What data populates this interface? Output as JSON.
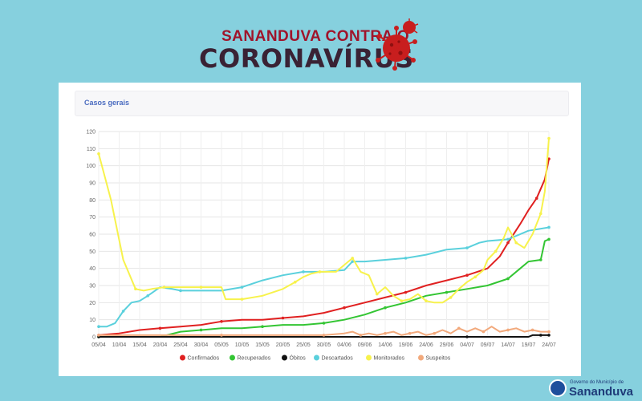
{
  "header": {
    "line1": "SANANDUVA CONTRA O",
    "line2": "CORONAVÍRUS"
  },
  "card": {
    "title": "Casos gerais"
  },
  "footer": {
    "small": "Governo do Município de",
    "big": "Sananduva"
  },
  "colors": {
    "background": "#86d0de",
    "confirmados": "#e02020",
    "recuperados": "#33c533",
    "obitos": "#111111",
    "descartados": "#5ad0dc",
    "monitorados": "#f7f24c",
    "suspeitos": "#f2a97c"
  },
  "chart_data": {
    "type": "line",
    "ylim": [
      0,
      120
    ],
    "yticks": [
      0,
      10,
      20,
      30,
      40,
      50,
      60,
      70,
      80,
      90,
      100,
      110,
      120
    ],
    "xlim": [
      0,
      110
    ],
    "xticks": [
      "05/04",
      "10/04",
      "15/04",
      "20/04",
      "25/04",
      "30/04",
      "05/05",
      "10/05",
      "15/05",
      "20/05",
      "25/05",
      "30/05",
      "04/06",
      "09/06",
      "14/06",
      "19/06",
      "24/06",
      "29/06",
      "04/07",
      "09/07",
      "14/07",
      "19/07",
      "24/07"
    ],
    "series": [
      {
        "name": "Confirmados",
        "color": "#e02020",
        "points": [
          [
            0,
            1
          ],
          [
            5,
            2
          ],
          [
            10,
            4
          ],
          [
            15,
            5
          ],
          [
            20,
            6
          ],
          [
            25,
            7
          ],
          [
            30,
            9
          ],
          [
            35,
            10
          ],
          [
            40,
            10
          ],
          [
            45,
            11
          ],
          [
            50,
            12
          ],
          [
            55,
            14
          ],
          [
            60,
            17
          ],
          [
            65,
            20
          ],
          [
            70,
            23
          ],
          [
            75,
            26
          ],
          [
            80,
            30
          ],
          [
            85,
            33
          ],
          [
            90,
            36
          ],
          [
            95,
            40
          ],
          [
            98,
            47
          ],
          [
            100,
            55
          ],
          [
            103,
            66
          ],
          [
            105,
            74
          ],
          [
            107,
            81
          ],
          [
            109,
            92
          ],
          [
            110,
            104
          ]
        ]
      },
      {
        "name": "Recuperados",
        "color": "#33c533",
        "points": [
          [
            0,
            0
          ],
          [
            15,
            0
          ],
          [
            20,
            3
          ],
          [
            25,
            4
          ],
          [
            30,
            5
          ],
          [
            35,
            5
          ],
          [
            40,
            6
          ],
          [
            45,
            7
          ],
          [
            50,
            7
          ],
          [
            55,
            8
          ],
          [
            60,
            10
          ],
          [
            65,
            13
          ],
          [
            70,
            17
          ],
          [
            75,
            20
          ],
          [
            80,
            24
          ],
          [
            85,
            26
          ],
          [
            90,
            28
          ],
          [
            95,
            30
          ],
          [
            100,
            34
          ],
          [
            103,
            40
          ],
          [
            105,
            44
          ],
          [
            108,
            45
          ],
          [
            109,
            56
          ],
          [
            110,
            57
          ]
        ]
      },
      {
        "name": "Óbitos",
        "color": "#111111",
        "points": [
          [
            0,
            0
          ],
          [
            30,
            0
          ],
          [
            60,
            0
          ],
          [
            90,
            0
          ],
          [
            105,
            0
          ],
          [
            106,
            1
          ],
          [
            108,
            1
          ],
          [
            110,
            1
          ]
        ]
      },
      {
        "name": "Descartados",
        "color": "#5ad0dc",
        "points": [
          [
            0,
            6
          ],
          [
            2,
            6
          ],
          [
            4,
            8
          ],
          [
            6,
            15
          ],
          [
            8,
            20
          ],
          [
            10,
            21
          ],
          [
            12,
            24
          ],
          [
            15,
            29
          ],
          [
            18,
            28
          ],
          [
            20,
            27
          ],
          [
            25,
            27
          ],
          [
            30,
            27
          ],
          [
            35,
            29
          ],
          [
            40,
            33
          ],
          [
            45,
            36
          ],
          [
            50,
            38
          ],
          [
            55,
            38
          ],
          [
            60,
            39
          ],
          [
            62,
            44
          ],
          [
            65,
            44
          ],
          [
            70,
            45
          ],
          [
            75,
            46
          ],
          [
            80,
            48
          ],
          [
            85,
            51
          ],
          [
            90,
            52
          ],
          [
            93,
            55
          ],
          [
            95,
            56
          ],
          [
            100,
            57
          ],
          [
            105,
            62
          ],
          [
            110,
            64
          ]
        ]
      },
      {
        "name": "Monitorados",
        "color": "#f7f24c",
        "points": [
          [
            0,
            107
          ],
          [
            3,
            80
          ],
          [
            6,
            45
          ],
          [
            9,
            28
          ],
          [
            11,
            27
          ],
          [
            13,
            28
          ],
          [
            16,
            29
          ],
          [
            18,
            29
          ],
          [
            20,
            29
          ],
          [
            25,
            29
          ],
          [
            30,
            29
          ],
          [
            31,
            22
          ],
          [
            35,
            22
          ],
          [
            40,
            24
          ],
          [
            45,
            28
          ],
          [
            48,
            32
          ],
          [
            50,
            35
          ],
          [
            52,
            37
          ],
          [
            54,
            38
          ],
          [
            58,
            38
          ],
          [
            60,
            42
          ],
          [
            62,
            46
          ],
          [
            64,
            38
          ],
          [
            66,
            36
          ],
          [
            68,
            25
          ],
          [
            70,
            29
          ],
          [
            72,
            24
          ],
          [
            74,
            21
          ],
          [
            76,
            22
          ],
          [
            78,
            25
          ],
          [
            80,
            21
          ],
          [
            82,
            20
          ],
          [
            84,
            20
          ],
          [
            86,
            23
          ],
          [
            88,
            28
          ],
          [
            90,
            32
          ],
          [
            92,
            35
          ],
          [
            94,
            39
          ],
          [
            95,
            45
          ],
          [
            97,
            50
          ],
          [
            99,
            58
          ],
          [
            100,
            64
          ],
          [
            102,
            55
          ],
          [
            104,
            52
          ],
          [
            106,
            60
          ],
          [
            108,
            72
          ],
          [
            109,
            85
          ],
          [
            110,
            116
          ]
        ]
      },
      {
        "name": "Suspeitos",
        "color": "#f2a97c",
        "points": [
          [
            0,
            1
          ],
          [
            10,
            1
          ],
          [
            20,
            1
          ],
          [
            30,
            1
          ],
          [
            40,
            1
          ],
          [
            50,
            1
          ],
          [
            55,
            1
          ],
          [
            60,
            2
          ],
          [
            62,
            3
          ],
          [
            64,
            1
          ],
          [
            66,
            2
          ],
          [
            68,
            1
          ],
          [
            70,
            2
          ],
          [
            72,
            3
          ],
          [
            74,
            1
          ],
          [
            76,
            2
          ],
          [
            78,
            3
          ],
          [
            80,
            1
          ],
          [
            82,
            2
          ],
          [
            84,
            4
          ],
          [
            86,
            2
          ],
          [
            88,
            5
          ],
          [
            90,
            3
          ],
          [
            92,
            5
          ],
          [
            94,
            3
          ],
          [
            96,
            6
          ],
          [
            98,
            3
          ],
          [
            100,
            4
          ],
          [
            102,
            5
          ],
          [
            104,
            3
          ],
          [
            106,
            4
          ],
          [
            108,
            3
          ],
          [
            110,
            3
          ]
        ]
      }
    ],
    "legend": [
      "Confirmados",
      "Recuperados",
      "Óbitos",
      "Descartados",
      "Monitorados",
      "Suspeitos"
    ],
    "legend_position": "bottom",
    "grid": true
  }
}
